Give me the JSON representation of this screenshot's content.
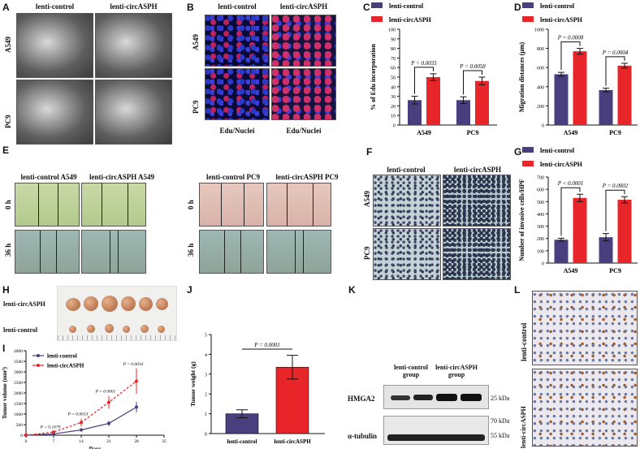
{
  "panels": {
    "A": {
      "letter": "A",
      "cols": [
        "lenti-control",
        "lenti-circASPH"
      ],
      "rows": [
        "A549",
        "PC9"
      ]
    },
    "B": {
      "letter": "B",
      "cols": [
        "lenti-control",
        "lenti-circASPH"
      ],
      "rows": [
        "A549",
        "PC9"
      ],
      "caption_left": "Edu/Nuclei",
      "caption_right": "Edu/Nuclei"
    },
    "C": {
      "letter": "C"
    },
    "D": {
      "letter": "D"
    },
    "E": {
      "letter": "E",
      "cols_left": [
        "lenti-control A549",
        "lenti-circASPH A549"
      ],
      "cols_right": [
        "lenti-control PC9",
        "lenti-circASPH PC9"
      ],
      "rows": [
        "0 h",
        "36 h"
      ]
    },
    "F": {
      "letter": "F",
      "cols": [
        "lenti-control",
        "lenti-circASPH"
      ],
      "rows": [
        "A549",
        "PC9"
      ]
    },
    "G": {
      "letter": "G"
    },
    "H": {
      "letter": "H",
      "rows": [
        "lenti-circASPH",
        "lenti-control"
      ]
    },
    "I": {
      "letter": "I"
    },
    "J": {
      "letter": "J"
    },
    "K": {
      "letter": "K",
      "groups": [
        "lenti-control group",
        "lenti-circASPH group"
      ],
      "rows": [
        "HMGA2",
        "α-tubulin"
      ],
      "markers": [
        "25 kDa",
        "70 kDa",
        "55 kDa"
      ]
    },
    "L": {
      "letter": "L",
      "rows": [
        "lenti-control",
        "lenti-circASPH"
      ]
    }
  },
  "colors": {
    "control": "#4a3f7e",
    "circ": "#e8262a"
  },
  "chart_data": [
    {
      "id": "C",
      "type": "bar",
      "categories": [
        "A549",
        "PC9"
      ],
      "series": [
        {
          "name": "lenti-control",
          "values": [
            26,
            26
          ],
          "errors": [
            4,
            3.5
          ]
        },
        {
          "name": "lenti-circASPH",
          "values": [
            50,
            46
          ],
          "errors": [
            3.5,
            4
          ]
        }
      ],
      "ylabel": "% of Edu incorporation",
      "ylim": [
        0,
        100
      ],
      "yticks": [
        0,
        10,
        20,
        30,
        40,
        50,
        60,
        70,
        80,
        90,
        100
      ],
      "annotations": [
        "P = 0.0035",
        "P = 0.0058"
      ]
    },
    {
      "id": "D",
      "type": "bar",
      "categories": [
        "A549",
        "PC9"
      ],
      "series": [
        {
          "name": "lenti-control",
          "values": [
            530,
            365
          ],
          "errors": [
            20,
            20
          ]
        },
        {
          "name": "lenti-circASPH",
          "values": [
            770,
            620
          ],
          "errors": [
            30,
            25
          ]
        }
      ],
      "ylabel": "Migration distances (μm)",
      "ylim": [
        0,
        1000
      ],
      "yticks": [
        0,
        200,
        400,
        600,
        800,
        1000
      ],
      "annotations": [
        "P = 0.0008",
        "P = 0.0004"
      ]
    },
    {
      "id": "G",
      "type": "bar",
      "categories": [
        "A549",
        "PC9"
      ],
      "series": [
        {
          "name": "lenti-control",
          "values": [
            190,
            210
          ],
          "errors": [
            12,
            30
          ]
        },
        {
          "name": "lenti-circASPH",
          "values": [
            530,
            515
          ],
          "errors": [
            30,
            25
          ]
        }
      ],
      "ylabel": "Number of invasive cells/HPF",
      "ylim": [
        0,
        700
      ],
      "yticks": [
        0,
        100,
        200,
        300,
        400,
        500,
        600,
        700
      ],
      "annotations": [
        "P < 0.0001",
        "P = 0.0002"
      ]
    },
    {
      "id": "I",
      "type": "line",
      "x": [
        0,
        7,
        14,
        21,
        28
      ],
      "series": [
        {
          "name": "lenti-control",
          "values": [
            0,
            60,
            250,
            560,
            1330
          ],
          "errors": [
            0,
            20,
            60,
            120,
            250
          ]
        },
        {
          "name": "lenti-circASPH",
          "values": [
            0,
            150,
            600,
            1560,
            2560
          ],
          "errors": [
            0,
            30,
            180,
            300,
            600
          ]
        }
      ],
      "xlabel": "Days",
      "ylabel": "Tumor volume (mm³)",
      "xlim": [
        0,
        35
      ],
      "ylim": [
        0,
        4000
      ],
      "xticks": [
        0,
        7,
        14,
        21,
        28,
        35
      ],
      "yticks": [
        0,
        500,
        1000,
        1500,
        2000,
        2500,
        3000,
        3500,
        4000
      ],
      "annotations": [
        "P = 0.1679",
        "P = 0.0013",
        "P = 0.0001",
        "P = 0.0016"
      ]
    },
    {
      "id": "J",
      "type": "bar",
      "categories": [
        "lenti-control",
        "lenti-circASPH"
      ],
      "values": [
        1.0,
        3.35
      ],
      "errors": [
        0.2,
        0.6
      ],
      "ylabel": "Tumor weight (g)",
      "ylim": [
        0,
        5
      ],
      "yticks": [
        0,
        1,
        2,
        3,
        4,
        5
      ],
      "annotations": [
        "P = 0.0001"
      ]
    }
  ]
}
